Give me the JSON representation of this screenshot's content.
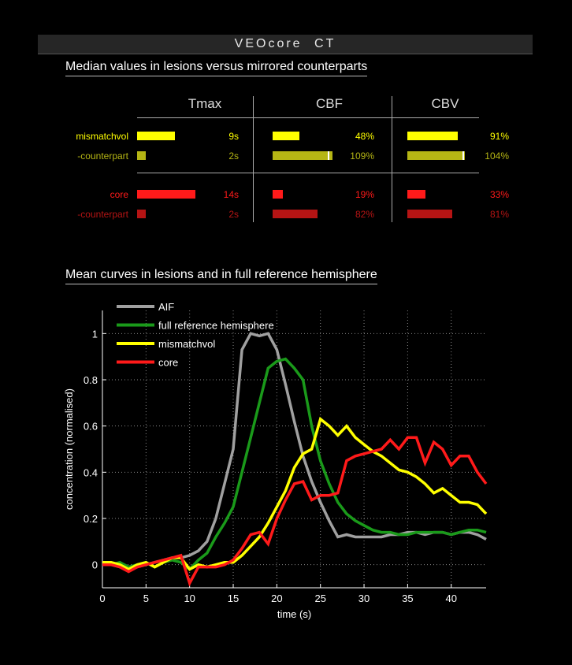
{
  "app_title": "VEOcore   CT",
  "table": {
    "title": "Median values in lesions versus mirrored counterparts",
    "columns": [
      "Tmax",
      "CBF",
      "CBV"
    ],
    "rows": [
      {
        "label": "mismatchvol",
        "color": "#ffff00",
        "tmax": 9,
        "tmax_label": "9s",
        "cbf": 48,
        "cbf_label": "48%",
        "cbv": 91,
        "cbv_label": "91%"
      },
      {
        "label": "-counterpart",
        "color": "#b5b514",
        "tmax": 2,
        "tmax_label": "2s",
        "cbf": 109,
        "cbf_label": "109%",
        "cbv": 104,
        "cbv_label": "104%"
      },
      {
        "label": "core",
        "color": "#ff1a1a",
        "tmax": 14,
        "tmax_label": "14s",
        "cbf": 19,
        "cbf_label": "19%",
        "cbv": 33,
        "cbv_label": "33%"
      },
      {
        "label": "-counterpart",
        "color": "#b51414",
        "tmax": 2,
        "tmax_label": "2s",
        "cbf": 82,
        "cbf_label": "82%",
        "cbv": 81,
        "cbv_label": "81%"
      }
    ]
  },
  "chart_title": "Mean curves in lesions and in full reference hemisphere",
  "chart_data": {
    "type": "line",
    "title": "Mean curves in lesions and in full reference hemisphere",
    "xlabel": "time (s)",
    "ylabel": "concentration (normalised)",
    "xlim": [
      0,
      44
    ],
    "ylim": [
      -0.1,
      1.1
    ],
    "xticks": [
      0,
      5,
      10,
      15,
      20,
      25,
      30,
      35,
      40
    ],
    "xtick_labels": [
      "0",
      "5",
      "10",
      "15",
      "20",
      "25",
      "30",
      "35",
      "40"
    ],
    "yticks": [
      0,
      0.2,
      0.4,
      0.6,
      0.8,
      1
    ],
    "ytick_labels": [
      "0",
      "0.2",
      "0.4",
      "0.6",
      "0.8",
      "1"
    ],
    "grid": true,
    "legend_position": "top-left",
    "series": [
      {
        "name": "AIF",
        "color": "#a0a0a0",
        "x": [
          0,
          1,
          2,
          3,
          4,
          5,
          6,
          7,
          8,
          9,
          10,
          11,
          12,
          13,
          14,
          15,
          16,
          17,
          18,
          19,
          20,
          21,
          22,
          23,
          24,
          25,
          26,
          27,
          28,
          29,
          30,
          31,
          32,
          33,
          34,
          35,
          36,
          37,
          38,
          39,
          40,
          41,
          42,
          43,
          44
        ],
        "y": [
          0,
          0,
          -0.01,
          -0.02,
          -0.01,
          0,
          0.01,
          0.02,
          0.03,
          0.03,
          0.04,
          0.06,
          0.1,
          0.2,
          0.35,
          0.5,
          0.93,
          1.0,
          0.99,
          1.0,
          0.93,
          0.78,
          0.62,
          0.47,
          0.36,
          0.27,
          0.19,
          0.12,
          0.13,
          0.12,
          0.12,
          0.12,
          0.12,
          0.13,
          0.13,
          0.14,
          0.14,
          0.13,
          0.14,
          0.14,
          0.13,
          0.14,
          0.14,
          0.13,
          0.11
        ]
      },
      {
        "name": "full reference hemisphere",
        "color": "#1a9a1a",
        "x": [
          0,
          1,
          2,
          3,
          4,
          5,
          6,
          7,
          8,
          9,
          10,
          11,
          12,
          13,
          14,
          15,
          16,
          17,
          18,
          19,
          20,
          21,
          22,
          23,
          24,
          25,
          26,
          27,
          28,
          29,
          30,
          31,
          32,
          33,
          34,
          35,
          36,
          37,
          38,
          39,
          40,
          41,
          42,
          43,
          44
        ],
        "y": [
          0,
          0,
          0.01,
          -0.01,
          0,
          0.01,
          -0.01,
          0.01,
          0.02,
          0.01,
          -0.02,
          0.02,
          0.05,
          0.12,
          0.18,
          0.25,
          0.4,
          0.55,
          0.7,
          0.85,
          0.88,
          0.89,
          0.85,
          0.8,
          0.6,
          0.45,
          0.35,
          0.27,
          0.22,
          0.19,
          0.17,
          0.15,
          0.14,
          0.14,
          0.13,
          0.13,
          0.14,
          0.14,
          0.14,
          0.14,
          0.13,
          0.14,
          0.15,
          0.15,
          0.14
        ]
      },
      {
        "name": "mismatchvol",
        "color": "#ffff00",
        "x": [
          0,
          1,
          2,
          3,
          4,
          5,
          6,
          7,
          8,
          9,
          10,
          11,
          12,
          13,
          14,
          15,
          16,
          17,
          18,
          19,
          20,
          21,
          22,
          23,
          24,
          25,
          26,
          27,
          28,
          29,
          30,
          31,
          32,
          33,
          34,
          35,
          36,
          37,
          38,
          39,
          40,
          41,
          42,
          43,
          44
        ],
        "y": [
          0.01,
          0.01,
          0,
          -0.02,
          0,
          0.01,
          -0.01,
          0.01,
          0.03,
          0.03,
          -0.02,
          0,
          -0.01,
          0,
          0.01,
          0.01,
          0.04,
          0.08,
          0.12,
          0.18,
          0.25,
          0.32,
          0.42,
          0.48,
          0.5,
          0.63,
          0.6,
          0.56,
          0.6,
          0.55,
          0.52,
          0.49,
          0.47,
          0.44,
          0.41,
          0.4,
          0.38,
          0.35,
          0.31,
          0.33,
          0.3,
          0.27,
          0.27,
          0.26,
          0.22
        ]
      },
      {
        "name": "core",
        "color": "#ff1a1a",
        "x": [
          0,
          1,
          2,
          3,
          4,
          5,
          6,
          7,
          8,
          9,
          10,
          11,
          12,
          13,
          14,
          15,
          16,
          17,
          18,
          19,
          20,
          21,
          22,
          23,
          24,
          25,
          26,
          27,
          28,
          29,
          30,
          31,
          32,
          33,
          34,
          35,
          36,
          37,
          38,
          39,
          40,
          41,
          42,
          43,
          44
        ],
        "y": [
          0,
          0,
          -0.01,
          -0.03,
          -0.01,
          0,
          0.01,
          0.02,
          0.03,
          0.04,
          -0.08,
          -0.01,
          -0.01,
          -0.01,
          0,
          0.02,
          0.07,
          0.13,
          0.14,
          0.09,
          0.2,
          0.28,
          0.35,
          0.36,
          0.28,
          0.3,
          0.3,
          0.31,
          0.45,
          0.47,
          0.48,
          0.49,
          0.5,
          0.54,
          0.5,
          0.55,
          0.55,
          0.44,
          0.53,
          0.5,
          0.43,
          0.47,
          0.47,
          0.4,
          0.35
        ]
      }
    ]
  }
}
